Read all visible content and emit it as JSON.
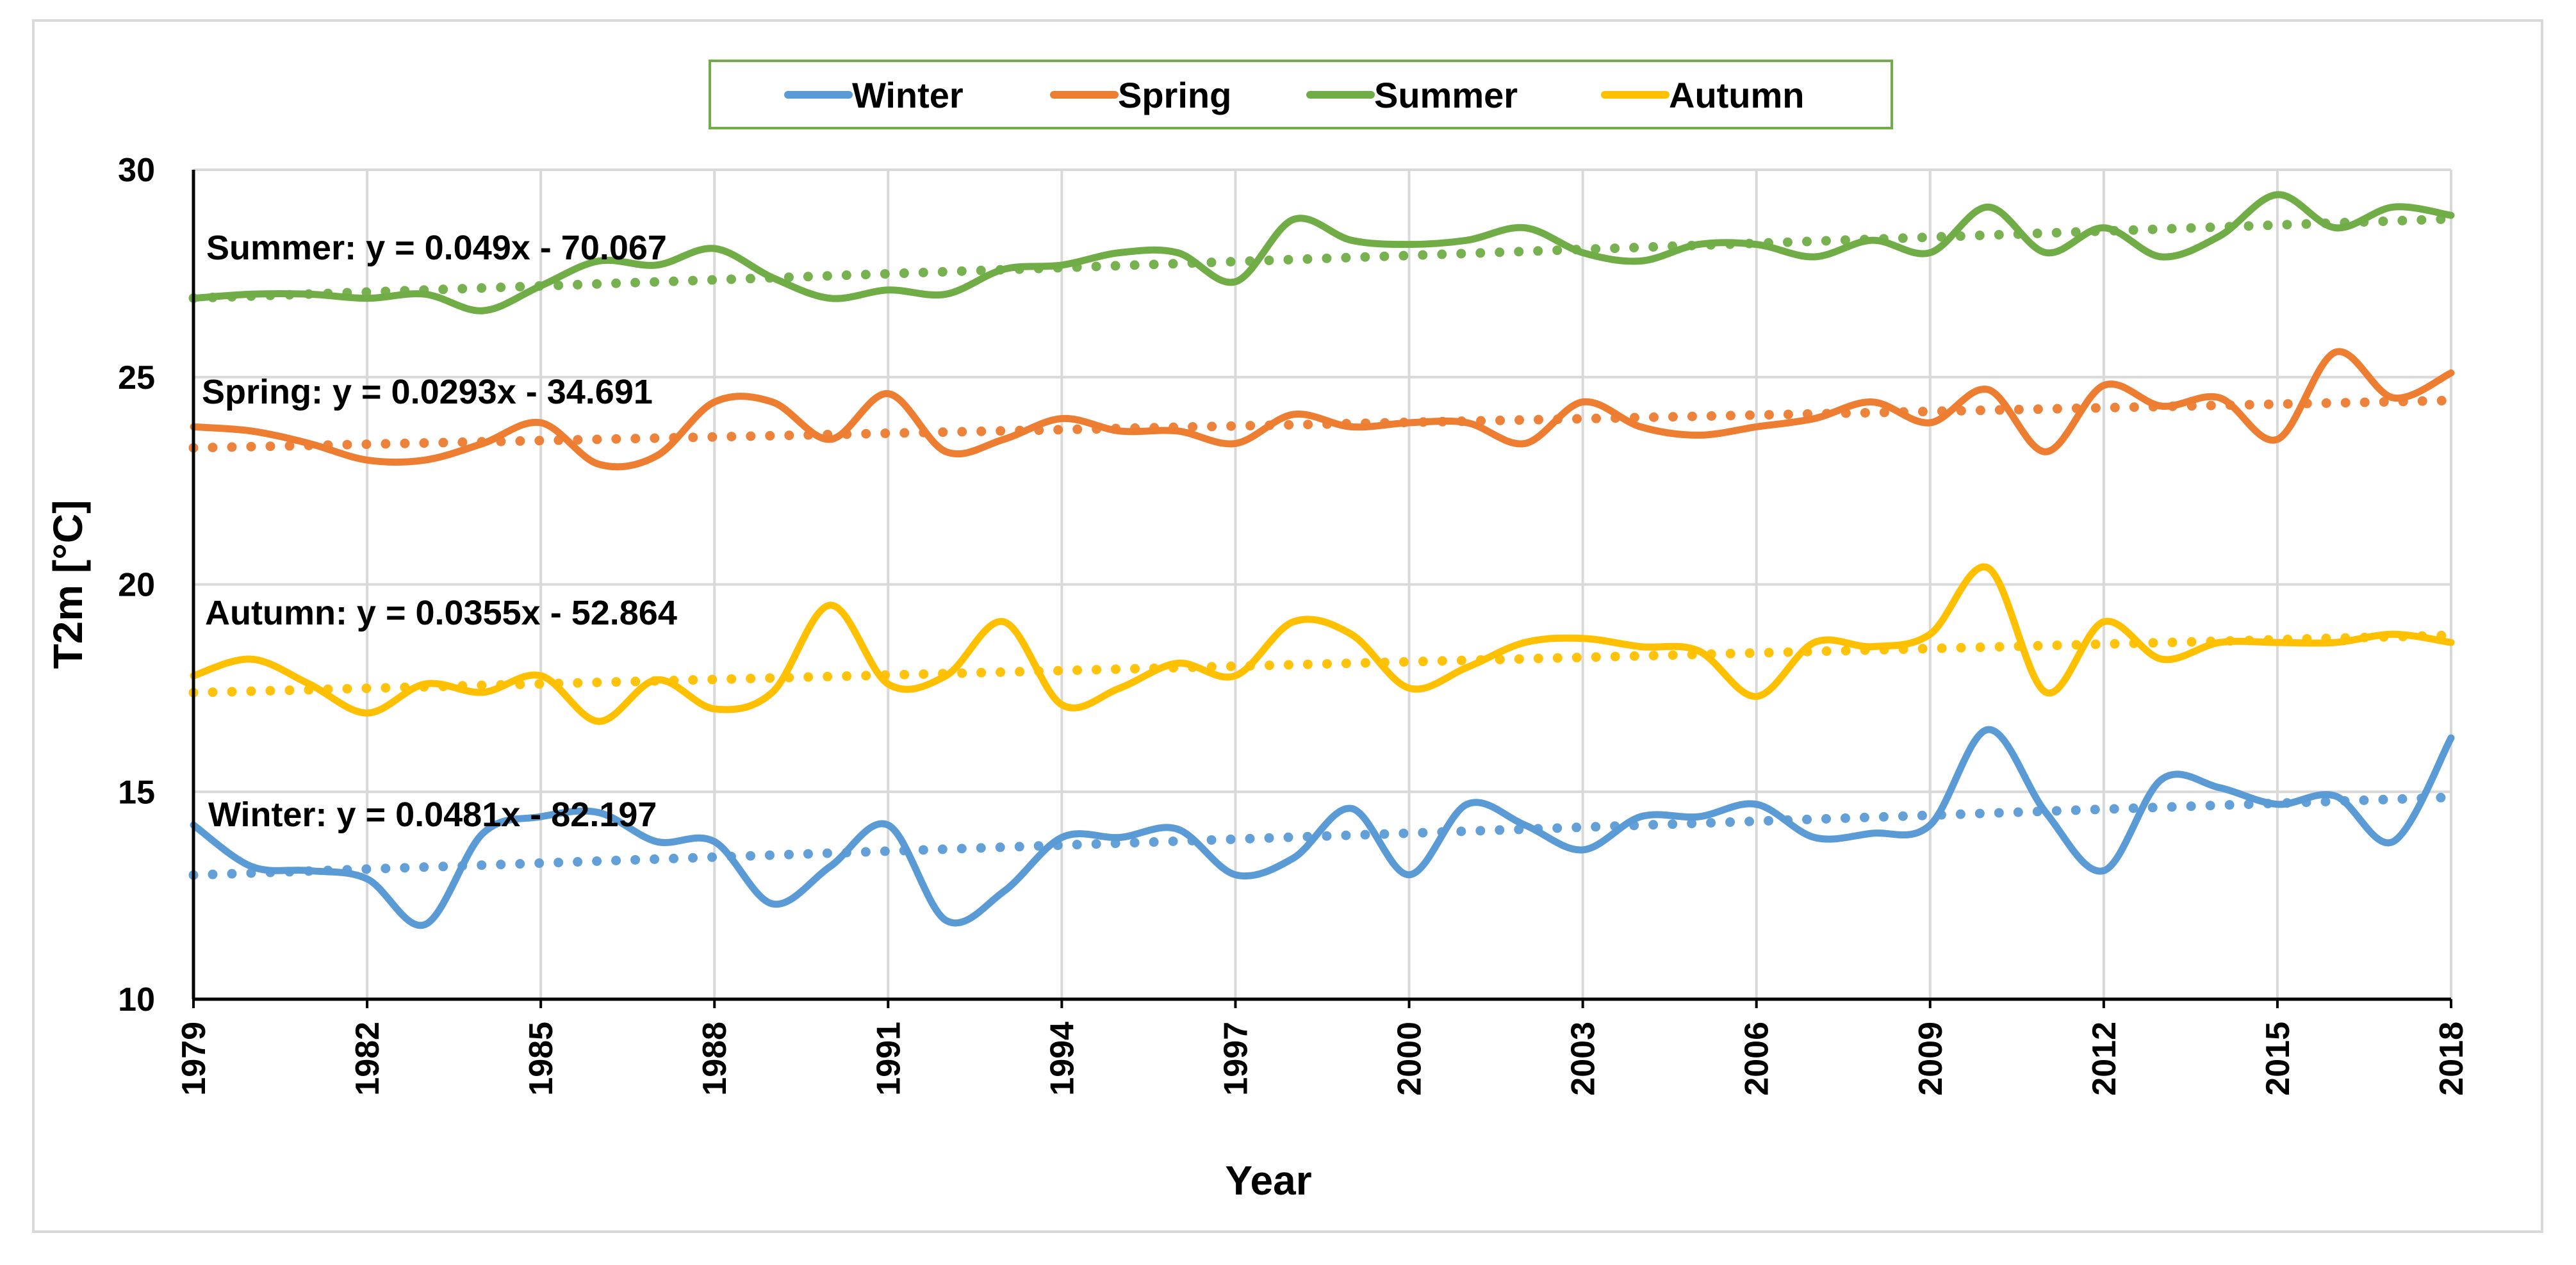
{
  "chart_data": {
    "type": "line",
    "title": "",
    "xlabel": "Year",
    "ylabel": "T2m [°C]",
    "xlim": [
      1979,
      2018
    ],
    "ylim": [
      10,
      30
    ],
    "x_ticks": [
      1979,
      1982,
      1985,
      1988,
      1991,
      1994,
      1997,
      2000,
      2003,
      2006,
      2009,
      2012,
      2015,
      2018
    ],
    "y_ticks": [
      10,
      15,
      20,
      25,
      30
    ],
    "x_tick_labels": [
      "1979",
      "1982",
      "1985",
      "1988",
      "1991",
      "1994",
      "1997",
      "2000",
      "2003",
      "2006",
      "2009",
      "2012",
      "2015",
      "2018"
    ],
    "y_tick_labels": [
      "10",
      "15",
      "20",
      "25",
      "30"
    ],
    "grid": true,
    "legend_position": "top-center",
    "years": [
      1979,
      1980,
      1981,
      1982,
      1983,
      1984,
      1985,
      1986,
      1987,
      1988,
      1989,
      1990,
      1991,
      1992,
      1993,
      1994,
      1995,
      1996,
      1997,
      1998,
      1999,
      2000,
      2001,
      2002,
      2003,
      2004,
      2005,
      2006,
      2007,
      2008,
      2009,
      2010,
      2011,
      2012,
      2013,
      2014,
      2015,
      2016,
      2017,
      2018
    ],
    "series": [
      {
        "name": "Winter",
        "color": "#5b9bd5",
        "values": [
          14.2,
          13.2,
          13.1,
          12.9,
          11.8,
          14.0,
          14.4,
          14.5,
          13.8,
          13.8,
          12.3,
          13.2,
          14.2,
          11.9,
          12.6,
          13.9,
          13.9,
          14.1,
          13.0,
          13.4,
          14.6,
          13.0,
          14.7,
          14.2,
          13.6,
          14.4,
          14.4,
          14.7,
          13.9,
          14.0,
          14.2,
          16.5,
          14.5,
          13.1,
          15.3,
          15.1,
          14.7,
          14.9,
          13.8,
          16.3
        ],
        "trend": {
          "slope": 0.0481,
          "intercept": -82.197,
          "label": "Winter: y = 0.0481x - 82.197"
        }
      },
      {
        "name": "Spring",
        "color": "#ed7d31",
        "values": [
          23.8,
          23.7,
          23.4,
          23.0,
          23.0,
          23.4,
          23.9,
          22.9,
          23.1,
          24.4,
          24.4,
          23.5,
          24.6,
          23.2,
          23.5,
          24.0,
          23.7,
          23.7,
          23.4,
          24.1,
          23.8,
          23.9,
          23.9,
          23.4,
          24.4,
          23.8,
          23.6,
          23.8,
          24.0,
          24.4,
          23.9,
          24.7,
          23.2,
          24.8,
          24.3,
          24.5,
          23.5,
          25.6,
          24.5,
          25.1
        ],
        "trend": {
          "slope": 0.0293,
          "intercept": -34.691,
          "label": "Spring: y = 0.0293x - 34.691"
        }
      },
      {
        "name": "Summer",
        "color": "#70ad47",
        "values": [
          26.9,
          27.0,
          27.0,
          26.9,
          27.0,
          26.6,
          27.2,
          27.8,
          27.7,
          28.1,
          27.4,
          26.9,
          27.1,
          27.0,
          27.6,
          27.7,
          28.0,
          28.0,
          27.3,
          28.8,
          28.3,
          28.2,
          28.3,
          28.6,
          28.0,
          27.8,
          28.2,
          28.2,
          27.9,
          28.3,
          28.0,
          29.1,
          28.0,
          28.6,
          27.9,
          28.4,
          29.4,
          28.6,
          29.1,
          28.9
        ],
        "trend": {
          "slope": 0.049,
          "intercept": -70.067,
          "label": "Summer: y = 0.049x - 70.067"
        }
      },
      {
        "name": "Autumn",
        "color": "#ffc000",
        "values": [
          17.8,
          18.2,
          17.6,
          16.9,
          17.6,
          17.4,
          17.8,
          16.7,
          17.7,
          17.0,
          17.4,
          19.5,
          17.6,
          17.8,
          19.1,
          17.1,
          17.5,
          18.1,
          17.8,
          19.1,
          18.8,
          17.5,
          18.0,
          18.6,
          18.7,
          18.5,
          18.4,
          17.3,
          18.6,
          18.5,
          18.8,
          20.4,
          17.4,
          19.1,
          18.2,
          18.6,
          18.6,
          18.6,
          18.8,
          18.6
        ],
        "trend": {
          "slope": 0.0355,
          "intercept": -52.864,
          "label": "Autumn: y = 0.0355x - 52.864"
        }
      }
    ]
  }
}
